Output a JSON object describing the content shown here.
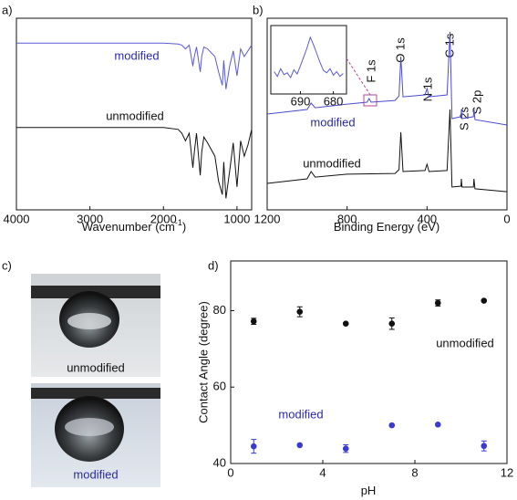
{
  "chart_data": [
    {
      "type": "line",
      "panel_label": "a)",
      "x_label": "Wavenumber (cm",
      "x_label_sup": "-1",
      "x_label_end": ")",
      "xlim": [
        4000,
        800
      ],
      "xticks": [
        4000,
        3000,
        2000,
        1000
      ],
      "ylim": [
        0,
        100
      ],
      "series": [
        {
          "name": "modified",
          "color": "#5a5ad8",
          "x": [
            4000,
            3000,
            2000,
            1800,
            1750,
            1700,
            1650,
            1600,
            1580,
            1550,
            1500,
            1480,
            1450,
            1400,
            1300,
            1250,
            1200,
            1180,
            1150,
            1100,
            1050,
            1000,
            950,
            900,
            850,
            800
          ],
          "values": [
            87,
            87,
            87,
            86.5,
            86,
            84,
            86,
            75,
            80,
            85,
            72,
            80,
            85,
            84,
            80,
            72,
            65,
            78,
            63,
            75,
            83,
            70,
            84,
            80,
            83,
            86
          ]
        },
        {
          "name": "unmodified",
          "color": "#111111",
          "x": [
            4000,
            3000,
            2000,
            1800,
            1750,
            1700,
            1650,
            1600,
            1580,
            1550,
            1500,
            1480,
            1450,
            1400,
            1300,
            1250,
            1200,
            1180,
            1150,
            1100,
            1050,
            1000,
            950,
            900,
            850,
            800
          ],
          "values": [
            43,
            43,
            43,
            42,
            40,
            36,
            40,
            22,
            30,
            40,
            18,
            30,
            38,
            35,
            28,
            15,
            8,
            25,
            6,
            20,
            35,
            12,
            36,
            28,
            34,
            42
          ]
        }
      ]
    },
    {
      "type": "line",
      "panel_label": "b)",
      "x_label": "Binding Energy (eV)",
      "xlim": [
        1200,
        0
      ],
      "xticks": [
        1200,
        800,
        400,
        0
      ],
      "ylim": [
        0,
        100
      ],
      "annotations": [
        "F 1s",
        "O 1s",
        "N 1s",
        "C 1s",
        "S 2s",
        "S 2p"
      ],
      "series": [
        {
          "name": "modified",
          "color": "#4a4ad0",
          "x": [
            1200,
            1000,
            980,
            960,
            800,
            700,
            690,
            680,
            560,
            540,
            531,
            520,
            410,
            400,
            390,
            300,
            285,
            275,
            230,
            228,
            225,
            168,
            165,
            160,
            0
          ],
          "values": [
            50,
            52.4,
            55.7,
            53.3,
            55.2,
            56.2,
            58.1,
            56.2,
            57.1,
            59.5,
            80,
            59,
            60,
            63.3,
            59,
            60,
            92.9,
            47.6,
            48.6,
            52.4,
            47.6,
            48.6,
            52.9,
            47.1,
            44.3
          ]
        },
        {
          "name": "unmodified",
          "color": "#111111",
          "x": [
            1200,
            1000,
            980,
            960,
            800,
            560,
            540,
            531,
            520,
            410,
            400,
            390,
            300,
            285,
            275,
            230,
            228,
            225,
            168,
            165,
            160,
            0
          ],
          "values": [
            13.8,
            16.2,
            20,
            17.1,
            18.6,
            19,
            21,
            40.5,
            20,
            20.5,
            23.8,
            20,
            20.5,
            52.4,
            11.9,
            12.4,
            16.2,
            11.9,
            11.9,
            16.2,
            11,
            9.5
          ]
        }
      ],
      "inset": {
        "xlim": [
          699,
          676
        ],
        "xticks": [
          690,
          680
        ],
        "ylim": [
          0,
          100
        ],
        "color": "#5a5ad8",
        "x": [
          698,
          697,
          696,
          695,
          694,
          693,
          692,
          691,
          690,
          689,
          688,
          687,
          686,
          685,
          684,
          683,
          682,
          681,
          680,
          679,
          678,
          677
        ],
        "values": [
          30,
          22,
          35,
          25,
          28,
          20,
          33,
          26,
          40,
          55,
          70,
          88,
          75,
          60,
          45,
          32,
          28,
          35,
          24,
          30,
          22,
          27
        ]
      }
    },
    {
      "type": "scatter",
      "panel_label": "d)",
      "x_label": "pH",
      "y_label": "Contact Angle (degree)",
      "xlim": [
        0,
        12
      ],
      "xticks": [
        0,
        4,
        8,
        12
      ],
      "ylim": [
        40,
        93
      ],
      "yticks": [
        40,
        60,
        80
      ],
      "series": [
        {
          "name": "unmodified",
          "color": "#111111",
          "x": [
            1,
            3,
            5,
            7,
            9,
            11
          ],
          "values": [
            77.2,
            79.7,
            76.6,
            76.6,
            82.0,
            82.6
          ],
          "errors": [
            0.8,
            1.3,
            null,
            1.5,
            0.8,
            null
          ]
        },
        {
          "name": "modified",
          "color": "#3a3ad0",
          "x": [
            1,
            3,
            5,
            7,
            9,
            11
          ],
          "values": [
            44.5,
            44.8,
            43.9,
            50.0,
            50.2,
            44.6
          ],
          "errors": [
            1.8,
            null,
            1.0,
            null,
            null,
            1.3
          ]
        }
      ]
    }
  ],
  "photo_panel": {
    "panel_label": "c)",
    "captions": [
      "unmodified",
      "modified"
    ]
  }
}
